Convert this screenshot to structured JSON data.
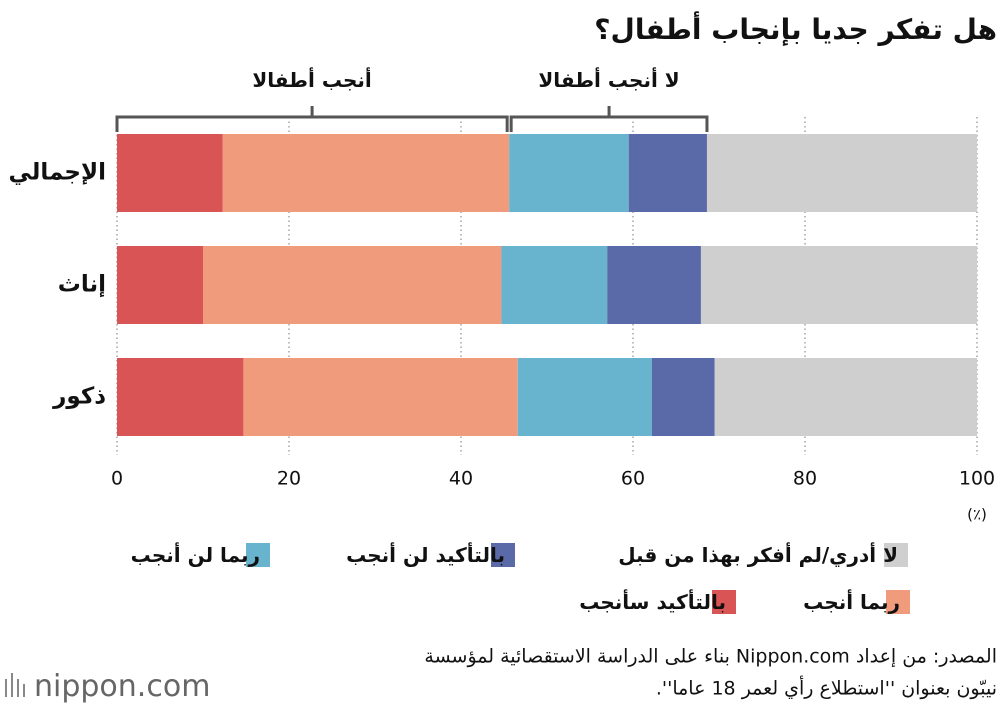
{
  "chart_data": {
    "type": "bar",
    "orientation": "horizontal",
    "stacked": true,
    "title": "هل تفكر جديا بإنجاب أطفال؟",
    "categories": [
      "الإجمالي",
      "إناث",
      "ذكور"
    ],
    "series": [
      {
        "name": "بالتأكيد سأنجب",
        "color": "#d95454",
        "values": [
          12.3,
          10.0,
          14.7
        ]
      },
      {
        "name": "ربما أنجب",
        "color": "#f09b7b",
        "values": [
          33.3,
          34.7,
          31.9
        ]
      },
      {
        "name": "ربما لن أنجب",
        "color": "#68b4cf",
        "values": [
          13.9,
          12.3,
          15.6
        ]
      },
      {
        "name": "بالتأكيد لن أنجب",
        "color": "#5a6aa8",
        "values": [
          9.1,
          10.9,
          7.3
        ]
      },
      {
        "name": "لا أدري/لم أفكر بهذا من قبل",
        "color": "#cfcfcf",
        "values": [
          31.4,
          32.1,
          30.5
        ]
      }
    ],
    "xlim": [
      0,
      100
    ],
    "xticks": [
      0,
      20,
      40,
      60,
      80,
      100
    ],
    "x_unit": "(٪)",
    "grid": true,
    "annotations": [
      "أنجب أطفالا",
      "لا أنجب أطفالا"
    ]
  },
  "source": [
    "المصدر: من إعداد Nippon.com بناء على الدراسة الاستقصائية لمؤسسة",
    "نيبّون بعنوان ''استطلاع رأي لعمر 18 عاما''."
  ],
  "logo": "nippon.com"
}
